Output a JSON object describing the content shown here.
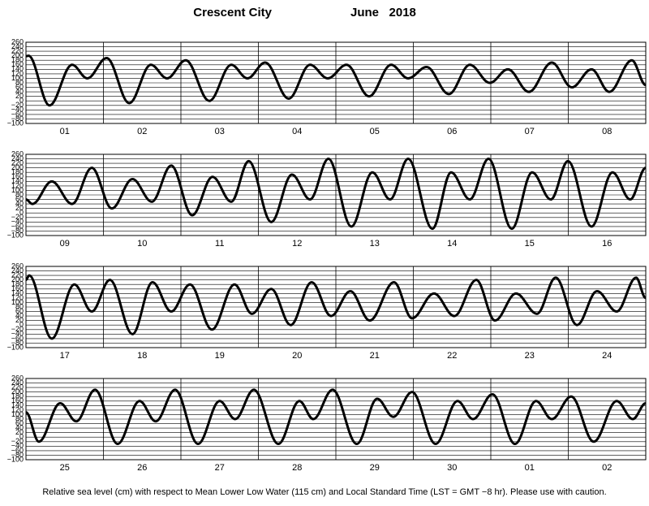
{
  "title": "Crescent City",
  "month": "June   2018",
  "footer": "Relative sea level (cm) with respect to Mean Lower Low Water (115 cm) and Local Standard Time (LST = GMT −8 hr). Please use with caution.",
  "chart_data": [
    {
      "type": "line",
      "color": "#000000",
      "categories": [
        "01",
        "02",
        "03",
        "04",
        "05",
        "06",
        "07",
        "08"
      ],
      "xlim": [
        0,
        192
      ],
      "ylim": [
        -100,
        260
      ],
      "yticks": [
        {
          "value": -100,
          "label": "−100"
        },
        {
          "value": -80,
          "label": "−80"
        },
        {
          "value": -60,
          "label": "−60"
        },
        {
          "value": -40,
          "label": "−40"
        },
        {
          "value": -20,
          "label": "−20"
        },
        0,
        20,
        40,
        60,
        80,
        100,
        120,
        140,
        160,
        180,
        200,
        220,
        240,
        260
      ],
      "x": [
        0,
        0.8,
        7.3,
        14.3,
        19,
        25,
        32,
        38.7,
        43.7,
        49.5,
        56.8,
        63.6,
        68.6,
        74.1,
        81.4,
        88,
        93.5,
        99.3,
        106.3,
        113.1,
        118.4,
        124.1,
        131,
        137.5,
        143.7,
        149.3,
        155.8,
        162.9,
        169.1,
        175.2,
        180.7,
        187.7,
        192
      ],
      "values": [
        198,
        200,
        -20,
        160,
        100,
        190,
        -10,
        160,
        100,
        180,
        0,
        160,
        100,
        170,
        10,
        160,
        100,
        160,
        20,
        160,
        100,
        150,
        30,
        160,
        80,
        140,
        40,
        170,
        60,
        140,
        40,
        180,
        70
      ]
    },
    {
      "type": "line",
      "color": "#000000",
      "categories": [
        "09",
        "10",
        "11",
        "12",
        "13",
        "14",
        "15",
        "16"
      ],
      "xlim": [
        0,
        192
      ],
      "ylim": [
        -100,
        260
      ],
      "yticks": [
        {
          "value": -100,
          "label": "−100"
        },
        {
          "value": -80,
          "label": "−80"
        },
        {
          "value": -60,
          "label": "−60"
        },
        {
          "value": -40,
          "label": "−40"
        },
        {
          "value": -20,
          "label": "−20"
        },
        0,
        20,
        40,
        60,
        80,
        100,
        120,
        140,
        160,
        180,
        200,
        220,
        240,
        260
      ],
      "x": [
        0,
        2,
        8,
        14.3,
        20.4,
        26.6,
        33,
        39,
        45,
        51.5,
        57.8,
        63.6,
        69,
        76,
        82.4,
        88,
        93.7,
        100.8,
        107.3,
        112.8,
        118.4,
        125.9,
        131.7,
        137.5,
        143.3,
        150.5,
        156.8,
        162.6,
        167.9,
        175.2,
        181.7,
        187.2,
        192
      ],
      "values": [
        60,
        40,
        140,
        40,
        200,
        20,
        150,
        50,
        210,
        -10,
        160,
        50,
        230,
        -40,
        170,
        60,
        240,
        -60,
        180,
        60,
        240,
        -70,
        180,
        60,
        240,
        -70,
        180,
        60,
        230,
        -60,
        180,
        60,
        200
      ]
    },
    {
      "type": "line",
      "color": "#000000",
      "categories": [
        "17",
        "18",
        "19",
        "20",
        "21",
        "22",
        "23",
        "24"
      ],
      "xlim": [
        0,
        192
      ],
      "ylim": [
        -100,
        260
      ],
      "yticks": [
        {
          "value": -100,
          "label": "−100"
        },
        {
          "value": -80,
          "label": "−80"
        },
        {
          "value": -60,
          "label": "−60"
        },
        {
          "value": -40,
          "label": "−40"
        },
        {
          "value": -20,
          "label": "−20"
        },
        0,
        20,
        40,
        60,
        80,
        100,
        120,
        140,
        160,
        180,
        200,
        220,
        240,
        260
      ],
      "x": [
        0,
        1,
        8,
        15,
        20.4,
        26,
        33,
        39.2,
        45,
        50.8,
        57.6,
        64.6,
        70,
        76,
        82,
        88.5,
        94.5,
        100.5,
        106.5,
        114,
        119.6,
        126.4,
        132.7,
        139.5,
        145.3,
        151.8,
        158.3,
        164.1,
        170.7,
        176.9,
        183,
        189,
        192
      ],
      "values": [
        200,
        220,
        -60,
        180,
        60,
        200,
        -40,
        190,
        60,
        180,
        -20,
        180,
        50,
        160,
        0,
        190,
        40,
        150,
        20,
        190,
        30,
        140,
        40,
        200,
        20,
        140,
        50,
        210,
        0,
        150,
        60,
        210,
        120
      ]
    },
    {
      "type": "line",
      "color": "#000000",
      "categories": [
        "25",
        "26",
        "27",
        "28",
        "29",
        "30",
        "01",
        "02"
      ],
      "xlim": [
        0,
        192
      ],
      "ylim": [
        -100,
        260
      ],
      "yticks": [
        {
          "value": -100,
          "label": "−100"
        },
        {
          "value": -80,
          "label": "−80"
        },
        {
          "value": -60,
          "label": "−60"
        },
        {
          "value": -40,
          "label": "−40"
        },
        {
          "value": -20,
          "label": "−20"
        },
        0,
        20,
        40,
        60,
        80,
        100,
        120,
        140,
        160,
        180,
        200,
        220,
        240,
        260
      ],
      "x": [
        0,
        4,
        10.6,
        15.6,
        21.4,
        28.4,
        35.2,
        40.2,
        46.2,
        53.3,
        60,
        64.8,
        70.6,
        78.2,
        84.7,
        89,
        95,
        102.5,
        108.8,
        113.8,
        119.6,
        126.9,
        133.7,
        138.5,
        144.5,
        151.5,
        158,
        162.9,
        168.9,
        175.9,
        183,
        188,
        192
      ],
      "values": [
        110,
        -20,
        150,
        70,
        210,
        -30,
        160,
        70,
        210,
        -30,
        160,
        80,
        210,
        -30,
        160,
        80,
        210,
        -30,
        170,
        90,
        200,
        -30,
        160,
        80,
        190,
        -30,
        160,
        80,
        180,
        -20,
        160,
        80,
        150
      ]
    }
  ]
}
